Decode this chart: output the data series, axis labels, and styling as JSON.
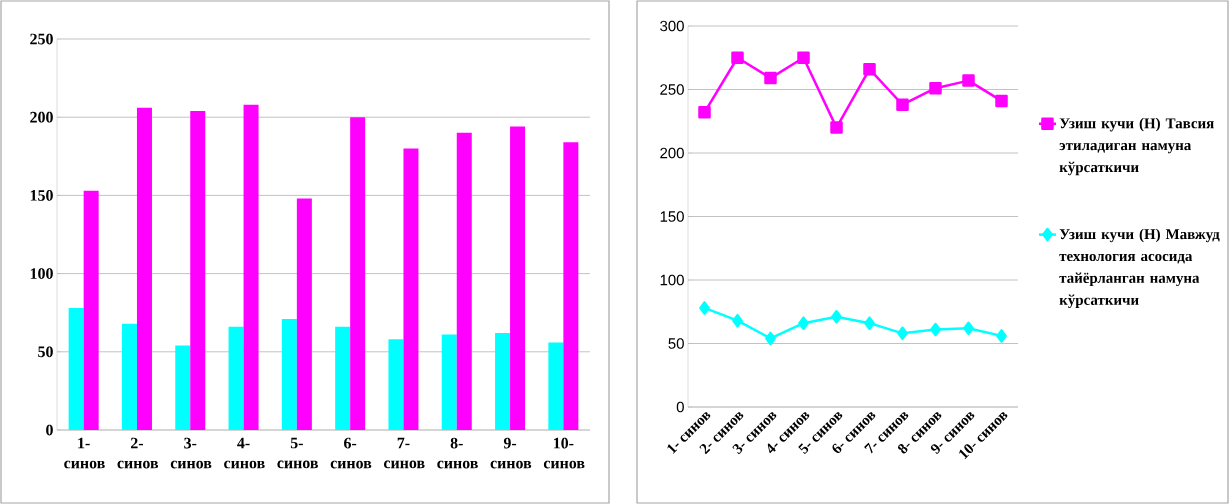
{
  "chart_data": [
    {
      "type": "bar",
      "categories": [
        "1- синов",
        "2- синов",
        "3- синов",
        "4- синов",
        "5- синов",
        "6- синов",
        "7- синов",
        "8- синов",
        "9- синов",
        "10- синов"
      ],
      "series": [
        {
          "color": "#00ffff",
          "values": [
            78,
            68,
            54,
            66,
            71,
            66,
            58,
            61,
            62,
            56
          ]
        },
        {
          "color": "#ff00ff",
          "values": [
            153,
            206,
            204,
            208,
            148,
            200,
            180,
            190,
            194,
            184
          ]
        }
      ],
      "ylim": [
        0,
        250
      ],
      "yticks": [
        0,
        50,
        100,
        150,
        200,
        250
      ],
      "grid": "y"
    },
    {
      "type": "line",
      "categories": [
        "1- синов",
        "2- синов",
        "3- синов",
        "4- синов",
        "5- синов",
        "6- синов",
        "7- синов",
        "8- синов",
        "9- синов",
        "10- синов"
      ],
      "series": [
        {
          "name": "Узиш кучи (Н) Тавсия этиладиган намуна кўрсаткичи",
          "color": "#ff00ff",
          "marker": "square",
          "values": [
            232,
            275,
            259,
            275,
            220,
            266,
            238,
            251,
            257,
            241
          ]
        },
        {
          "name": "Узиш кучи (Н) Мавжуд технология асосида тайёрланган намуна кўрсаткичи",
          "color": "#00ffff",
          "marker": "diamond",
          "values": [
            78,
            68,
            54,
            66,
            71,
            66,
            58,
            61,
            62,
            56
          ]
        }
      ],
      "ylim": [
        0,
        300
      ],
      "yticks": [
        0,
        50,
        100,
        150,
        200,
        250,
        300
      ],
      "grid": "y",
      "legend": "right"
    }
  ]
}
